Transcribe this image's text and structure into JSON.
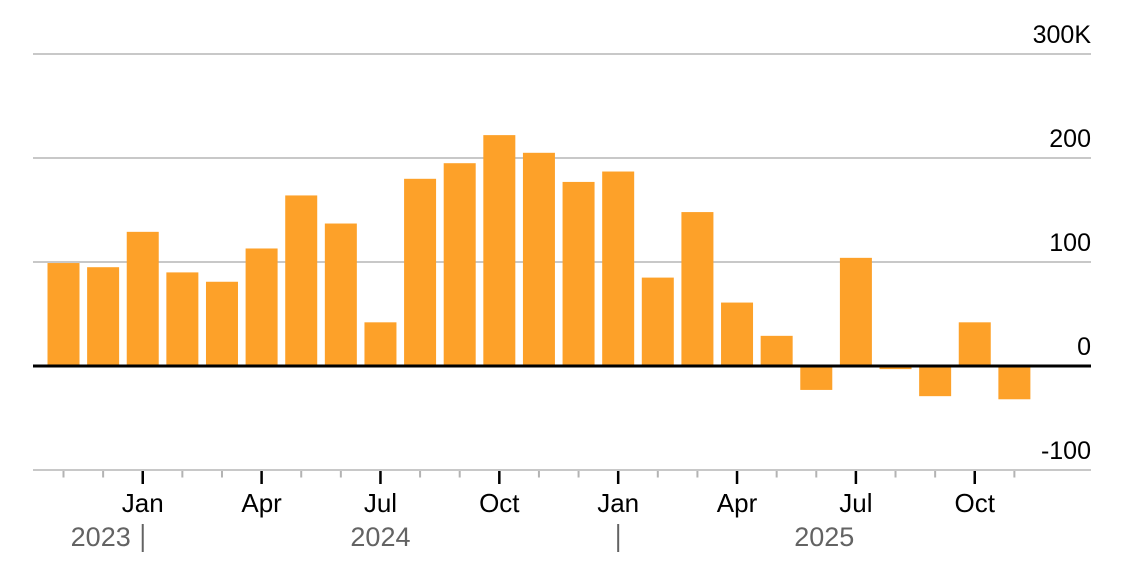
{
  "chart_data": {
    "type": "bar",
    "title": "",
    "xlabel": "",
    "ylabel": "",
    "y_unit_suffix": "K",
    "ylim": [
      -100,
      300
    ],
    "grid": true,
    "legend": "none",
    "categories": [
      "Nov 2023",
      "Dec 2023",
      "Jan 2024",
      "Feb 2024",
      "Mar 2024",
      "Apr 2024",
      "May 2024",
      "Jun 2024",
      "Jul 2024",
      "Aug 2024",
      "Sep 2024",
      "Oct 2024",
      "Nov 2024",
      "Dec 2024",
      "Jan 2025",
      "Feb 2025",
      "Mar 2025",
      "Apr 2025",
      "May 2025",
      "Jun 2025",
      "Jul 2025",
      "Aug 2025",
      "Sep 2025",
      "Oct 2025",
      "Nov 2025"
    ],
    "values": [
      99,
      95,
      129,
      90,
      81,
      113,
      164,
      137,
      42,
      180,
      195,
      222,
      205,
      177,
      187,
      85,
      148,
      61,
      29,
      -23,
      104,
      -3,
      -29,
      42,
      -32
    ],
    "y_ticks": [
      {
        "value": 300,
        "label": "300K"
      },
      {
        "value": 200,
        "label": "200"
      },
      {
        "value": 100,
        "label": "100"
      },
      {
        "value": 0,
        "label": "0"
      },
      {
        "value": -100,
        "label": "-100"
      }
    ],
    "x_month_ticks": [
      {
        "index": 2,
        "label": "Jan"
      },
      {
        "index": 5,
        "label": "Apr"
      },
      {
        "index": 8,
        "label": "Jul"
      },
      {
        "index": 11,
        "label": "Oct"
      },
      {
        "index": 14,
        "label": "Jan"
      },
      {
        "index": 17,
        "label": "Apr"
      },
      {
        "index": 20,
        "label": "Jul"
      },
      {
        "index": 23,
        "label": "Oct"
      }
    ],
    "year_axis": {
      "labels": [
        "2023",
        "2024",
        "2025"
      ],
      "divider_glyph": "|",
      "divider_indices": [
        2,
        14
      ]
    }
  },
  "colors": {
    "bar": "#FDA129",
    "gridline": "#C8C8C8",
    "zero_line": "#000000",
    "minor_tick": "#B3B3B3",
    "major_tick": "#000000",
    "axis_text": "#000000",
    "year_text": "#636363",
    "background": "#FFFFFF"
  }
}
